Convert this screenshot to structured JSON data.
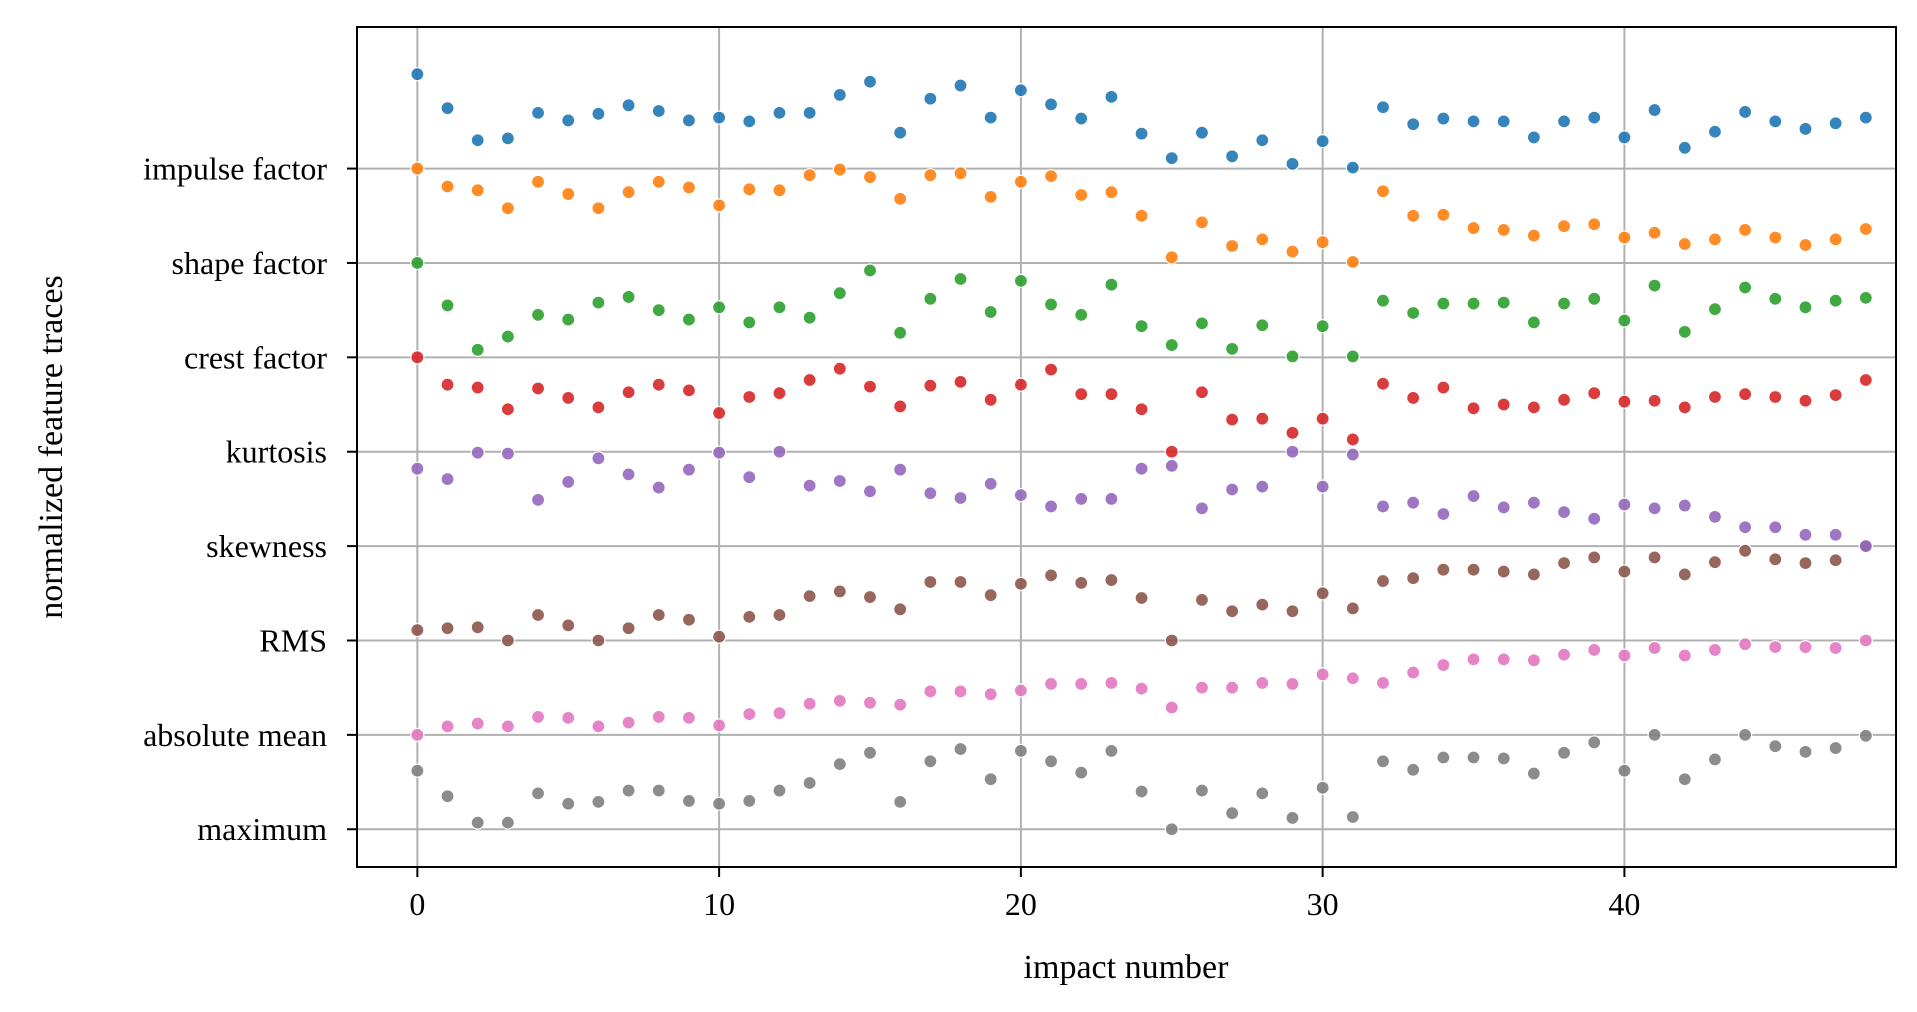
{
  "chart_data": {
    "type": "scatter",
    "xlabel": "impact number",
    "ylabel": "normalized feature traces",
    "xlim": [
      -2,
      49
    ],
    "ylim": [
      -0.4,
      8.5
    ],
    "xticks": [
      0,
      10,
      20,
      30,
      40
    ],
    "yticks": [
      {
        "label": "maximum",
        "value": 0
      },
      {
        "label": "absolute mean",
        "value": 1
      },
      {
        "label": "RMS",
        "value": 2
      },
      {
        "label": "skewness",
        "value": 3
      },
      {
        "label": "kurtosis",
        "value": 4
      },
      {
        "label": "crest factor",
        "value": 5
      },
      {
        "label": "shape factor",
        "value": 6
      },
      {
        "label": "impulse factor",
        "value": 7
      }
    ],
    "grid": true,
    "marker_color_names": [
      "gray",
      "pink",
      "brown",
      "purple",
      "red",
      "green",
      "orange",
      "blue"
    ],
    "series": [
      {
        "color": "#7f7f7f",
        "x": [
          0,
          1,
          2,
          3,
          4,
          5,
          6,
          7,
          8,
          9,
          10,
          11,
          12,
          13,
          14,
          15,
          16,
          17,
          18,
          19,
          20,
          21,
          22,
          23,
          24,
          25,
          26,
          27,
          28,
          29,
          30,
          31,
          32,
          33,
          34,
          35,
          36,
          37,
          38,
          39,
          40,
          41,
          42,
          43,
          44,
          45,
          46,
          47,
          48
        ],
        "y": [
          0.62,
          0.35,
          0.07,
          0.07,
          0.38,
          0.27,
          0.29,
          0.41,
          0.41,
          0.3,
          0.27,
          0.3,
          0.41,
          0.49,
          0.69,
          0.81,
          0.29,
          0.72,
          0.85,
          0.53,
          0.83,
          0.72,
          0.6,
          0.83,
          0.4,
          0.0,
          0.41,
          0.17,
          0.38,
          0.12,
          0.44,
          0.13,
          0.72,
          0.63,
          0.76,
          0.76,
          0.75,
          0.59,
          0.81,
          0.92,
          0.62,
          1.0,
          0.53,
          0.74,
          1.0,
          0.88,
          0.82,
          0.86,
          0.99
        ]
      },
      {
        "color": "#e377c2",
        "x": [
          0,
          1,
          2,
          3,
          4,
          5,
          6,
          7,
          8,
          9,
          10,
          11,
          12,
          13,
          14,
          15,
          16,
          17,
          18,
          19,
          20,
          21,
          22,
          23,
          24,
          25,
          26,
          27,
          28,
          29,
          30,
          31,
          32,
          33,
          34,
          35,
          36,
          37,
          38,
          39,
          40,
          41,
          42,
          43,
          44,
          45,
          46,
          47,
          48
        ],
        "y": [
          1.0,
          1.09,
          1.12,
          1.09,
          1.19,
          1.18,
          1.09,
          1.13,
          1.19,
          1.18,
          1.1,
          1.22,
          1.23,
          1.33,
          1.36,
          1.34,
          1.32,
          1.46,
          1.46,
          1.43,
          1.47,
          1.54,
          1.54,
          1.55,
          1.49,
          1.29,
          1.5,
          1.5,
          1.55,
          1.54,
          1.64,
          1.6,
          1.55,
          1.66,
          1.74,
          1.8,
          1.8,
          1.79,
          1.85,
          1.9,
          1.84,
          1.92,
          1.84,
          1.9,
          1.96,
          1.93,
          1.93,
          1.92,
          2.0
        ]
      },
      {
        "color": "#8c564b",
        "x": [
          0,
          1,
          2,
          3,
          4,
          5,
          6,
          7,
          8,
          9,
          10,
          11,
          12,
          13,
          14,
          15,
          16,
          17,
          18,
          19,
          20,
          21,
          22,
          23,
          24,
          25,
          26,
          27,
          28,
          29,
          30,
          31,
          32,
          33,
          34,
          35,
          36,
          37,
          38,
          39,
          40,
          41,
          42,
          43,
          44,
          45,
          46,
          47,
          48
        ],
        "y": [
          2.11,
          2.13,
          2.14,
          2.0,
          2.27,
          2.16,
          2.0,
          2.13,
          2.27,
          2.22,
          2.04,
          2.25,
          2.27,
          2.47,
          2.52,
          2.46,
          2.33,
          2.62,
          2.62,
          2.48,
          2.6,
          2.69,
          2.61,
          2.64,
          2.45,
          2.0,
          2.43,
          2.31,
          2.38,
          2.31,
          2.5,
          2.34,
          2.63,
          2.66,
          2.75,
          2.75,
          2.73,
          2.7,
          2.82,
          2.88,
          2.73,
          2.88,
          2.7,
          2.83,
          2.95,
          2.86,
          2.82,
          2.85,
          3.0
        ]
      },
      {
        "color": "#9467bd",
        "x": [
          0,
          1,
          2,
          3,
          4,
          5,
          6,
          7,
          8,
          9,
          10,
          11,
          12,
          13,
          14,
          15,
          16,
          17,
          18,
          19,
          20,
          21,
          22,
          23,
          24,
          25,
          26,
          27,
          28,
          29,
          30,
          31,
          32,
          33,
          34,
          35,
          36,
          37,
          38,
          39,
          40,
          41,
          42,
          43,
          44,
          45,
          46,
          47,
          48
        ],
        "y": [
          3.82,
          3.71,
          3.99,
          3.98,
          3.49,
          3.68,
          3.93,
          3.76,
          3.62,
          3.81,
          3.99,
          3.73,
          4.0,
          3.64,
          3.69,
          3.58,
          3.81,
          3.56,
          3.51,
          3.66,
          3.54,
          3.42,
          3.5,
          3.5,
          3.82,
          3.85,
          3.4,
          3.6,
          3.63,
          4.0,
          3.63,
          3.97,
          3.42,
          3.46,
          3.34,
          3.53,
          3.41,
          3.46,
          3.36,
          3.29,
          3.44,
          3.4,
          3.43,
          3.31,
          3.2,
          3.2,
          3.12,
          3.12,
          3.0
        ]
      },
      {
        "color": "#d62728",
        "x": [
          0,
          1,
          2,
          3,
          4,
          5,
          6,
          7,
          8,
          9,
          10,
          11,
          12,
          13,
          14,
          15,
          16,
          17,
          18,
          19,
          20,
          21,
          22,
          23,
          24,
          25,
          26,
          27,
          28,
          29,
          30,
          31,
          32,
          33,
          34,
          35,
          36,
          37,
          38,
          39,
          40,
          41,
          42,
          43,
          44,
          45,
          46,
          47,
          48
        ],
        "y": [
          5.0,
          4.71,
          4.68,
          4.45,
          4.67,
          4.57,
          4.47,
          4.63,
          4.71,
          4.65,
          4.41,
          4.58,
          4.62,
          4.76,
          4.88,
          4.69,
          4.48,
          4.7,
          4.74,
          4.55,
          4.71,
          4.87,
          4.61,
          4.61,
          4.45,
          4.0,
          4.63,
          4.34,
          4.35,
          4.2,
          4.35,
          4.13,
          4.72,
          4.57,
          4.68,
          4.46,
          4.5,
          4.47,
          4.55,
          4.62,
          4.53,
          4.54,
          4.47,
          4.58,
          4.61,
          4.58,
          4.54,
          4.6,
          4.76
        ]
      },
      {
        "color": "#2ca02c",
        "x": [
          0,
          1,
          2,
          3,
          4,
          5,
          6,
          7,
          8,
          9,
          10,
          11,
          12,
          13,
          14,
          15,
          16,
          17,
          18,
          19,
          20,
          21,
          22,
          23,
          24,
          25,
          26,
          27,
          28,
          29,
          30,
          31,
          32,
          33,
          34,
          35,
          36,
          37,
          38,
          39,
          40,
          41,
          42,
          43,
          44,
          45,
          46,
          47,
          48
        ],
        "y": [
          6.0,
          5.55,
          5.08,
          5.22,
          5.45,
          5.4,
          5.58,
          5.64,
          5.5,
          5.4,
          5.53,
          5.37,
          5.53,
          5.42,
          5.68,
          5.92,
          5.26,
          5.62,
          5.83,
          5.48,
          5.81,
          5.56,
          5.45,
          5.77,
          5.33,
          5.13,
          5.36,
          5.09,
          5.34,
          5.01,
          5.33,
          5.01,
          5.6,
          5.47,
          5.57,
          5.57,
          5.58,
          5.37,
          5.57,
          5.62,
          5.39,
          5.76,
          5.27,
          5.51,
          5.74,
          5.62,
          5.53,
          5.6,
          5.63
        ]
      },
      {
        "color": "#ff7f0e",
        "x": [
          0,
          1,
          2,
          3,
          4,
          5,
          6,
          7,
          8,
          9,
          10,
          11,
          12,
          13,
          14,
          15,
          16,
          17,
          18,
          19,
          20,
          21,
          22,
          23,
          24,
          25,
          26,
          27,
          28,
          29,
          30,
          31,
          32,
          33,
          34,
          35,
          36,
          37,
          38,
          39,
          40,
          41,
          42,
          43,
          44,
          45,
          46,
          47,
          48
        ],
        "y": [
          7.0,
          6.81,
          6.77,
          6.58,
          6.86,
          6.73,
          6.58,
          6.75,
          6.86,
          6.8,
          6.61,
          6.78,
          6.77,
          6.93,
          6.99,
          6.91,
          6.68,
          6.93,
          6.95,
          6.7,
          6.86,
          6.92,
          6.72,
          6.75,
          6.5,
          6.06,
          6.43,
          6.18,
          6.25,
          6.12,
          6.22,
          6.01,
          6.76,
          6.5,
          6.51,
          6.37,
          6.35,
          6.29,
          6.39,
          6.41,
          6.27,
          6.32,
          6.2,
          6.25,
          6.35,
          6.27,
          6.19,
          6.25,
          6.36
        ]
      },
      {
        "color": "#1f77b4",
        "x": [
          0,
          1,
          2,
          3,
          4,
          5,
          6,
          7,
          8,
          9,
          10,
          11,
          12,
          13,
          14,
          15,
          16,
          17,
          18,
          19,
          20,
          21,
          22,
          23,
          24,
          25,
          26,
          27,
          28,
          29,
          30,
          31,
          32,
          33,
          34,
          35,
          36,
          37,
          38,
          39,
          40,
          41,
          42,
          43,
          44,
          45,
          46,
          47,
          48
        ],
        "y": [
          8.0,
          7.64,
          7.3,
          7.32,
          7.59,
          7.51,
          7.58,
          7.67,
          7.61,
          7.51,
          7.54,
          7.5,
          7.59,
          7.59,
          7.78,
          7.92,
          7.38,
          7.74,
          7.88,
          7.54,
          7.83,
          7.68,
          7.53,
          7.76,
          7.37,
          7.11,
          7.38,
          7.13,
          7.3,
          7.05,
          7.29,
          7.01,
          7.65,
          7.47,
          7.53,
          7.5,
          7.5,
          7.33,
          7.5,
          7.54,
          7.33,
          7.62,
          7.22,
          7.39,
          7.6,
          7.5,
          7.42,
          7.48,
          7.54
        ]
      }
    ]
  }
}
